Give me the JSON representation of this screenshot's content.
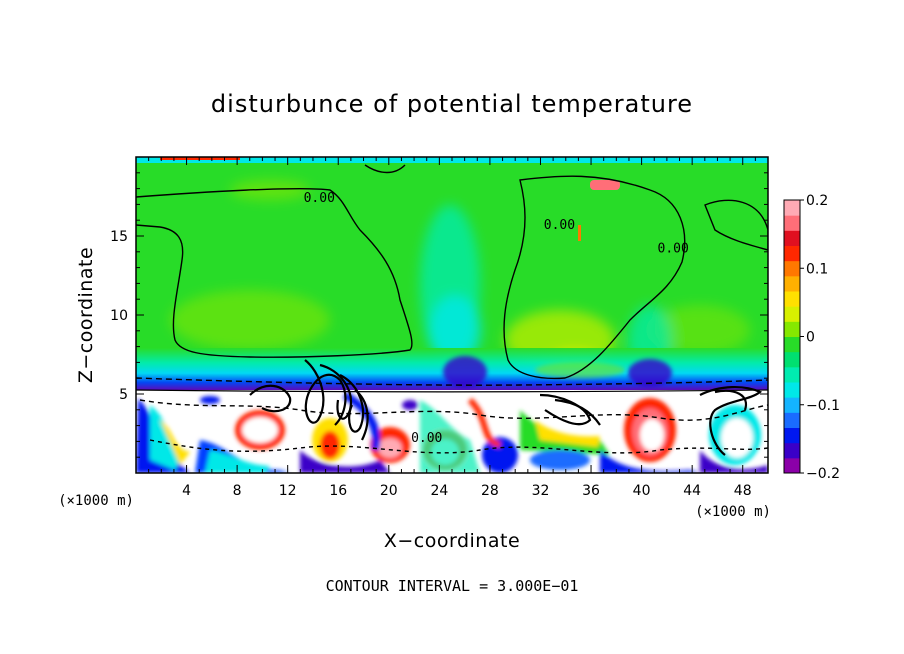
{
  "chart_data": {
    "type": "heatmap",
    "title": "disturbunce of potential temperature",
    "xlabel": "X−coordinate",
    "ylabel": "Z−coordinate",
    "x_unit_label": "(×1000 m)",
    "x_unit_label_right": "(×1000 m)",
    "footnote": "CONTOUR INTERVAL = 3.000E−01",
    "xlim": [
      0,
      50
    ],
    "ylim": [
      0,
      20
    ],
    "x_ticks": [
      4,
      8,
      12,
      16,
      20,
      24,
      28,
      32,
      36,
      40,
      44,
      48
    ],
    "x_tick_labels": [
      "4",
      "8",
      "12",
      "16",
      "20",
      "24",
      "28",
      "32",
      "36",
      "40",
      "44",
      "48"
    ],
    "y_ticks": [
      5,
      10,
      15
    ],
    "y_tick_labels": [
      "5",
      "10",
      "15"
    ],
    "colorbar": {
      "range": [
        -0.2,
        0.2
      ],
      "ticks": [
        0.2,
        0.1,
        0,
        -0.1,
        -0.2
      ],
      "tick_labels": [
        "0.2",
        "0.1",
        "0",
        "−0.1",
        "−0.2"
      ],
      "colors": [
        "#8b00a8",
        "#3a00c8",
        "#0018f0",
        "#1a6cff",
        "#14b4ff",
        "#00e8e8",
        "#00ecb0",
        "#00e070",
        "#28dc28",
        "#86e800",
        "#d8f000",
        "#ffe000",
        "#ffb000",
        "#ff7800",
        "#ff2800",
        "#e01020",
        "#ff6e78",
        "#ffaab4"
      ]
    },
    "contour_labels": [
      {
        "text": "0.00",
        "x": 14.5,
        "z": 17.4
      },
      {
        "text": "0.00",
        "x": 33.5,
        "z": 15.7
      },
      {
        "text": "0.00",
        "x": 42.5,
        "z": 14.2
      },
      {
        "text": "0.00",
        "x": 23.0,
        "z": 2.2
      }
    ],
    "regions": [
      {
        "note": "upper layer (z>6 km) mostly near 0; cyan/blue troughs near x≈26 and x≈40; lower layer (z<5 km) highly turbulent"
      }
    ]
  }
}
